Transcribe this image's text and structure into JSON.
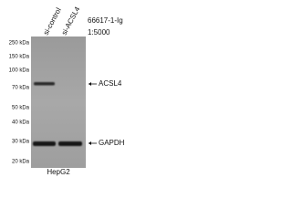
{
  "antibody": "66617-1-Ig",
  "dilution": "1:5000",
  "lanes": [
    "si-control",
    "si-ACSL4"
  ],
  "markers": [
    "250 kDa",
    "150 kDa",
    "100 kDa",
    "70 kDa",
    "50 kDa",
    "40 kDa",
    "30 kDa",
    "20 kDa"
  ],
  "bands": [
    {
      "label": "ACSL4"
    },
    {
      "label": "GAPDH"
    }
  ],
  "cell_line": "HepG2"
}
